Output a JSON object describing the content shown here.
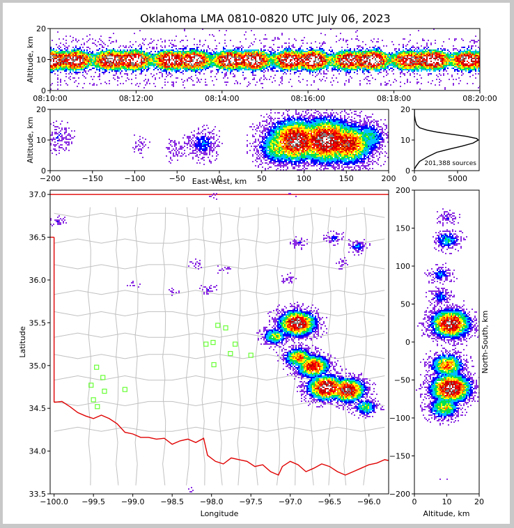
{
  "title": "Oklahoma LMA 0810-0820 UTC July 06, 2023",
  "colors": {
    "background_frame": "#c8c8c8",
    "state_border": "#e00000",
    "county_lines": "#c0c0c0",
    "station_marker": "#66ff33",
    "density_scale": [
      "#ffffff",
      "#8a2be2",
      "#0000ff",
      "#00c0ff",
      "#00e050",
      "#ffff00",
      "#ff8000",
      "#ff0000",
      "#c00000",
      "#808080",
      "#ffffff"
    ]
  },
  "chart_data": [
    {
      "type": "heatmap",
      "panel": "time-altitude",
      "ylabel": "Altitude, km",
      "xlim": [
        "08:10:00",
        "08:20:00"
      ],
      "ylim": [
        0,
        20
      ],
      "x_ticks": [
        "08:10:00",
        "08:12:00",
        "08:14:00",
        "08:16:00",
        "08:18:00",
        "08:20:00"
      ],
      "y_ticks": [
        "0",
        "10",
        "20"
      ],
      "core_altitude_km": [
        5,
        14
      ],
      "peak_altitude_km": 10
    },
    {
      "type": "heatmap",
      "panel": "east-west-altitude",
      "xlabel": "East-West, km",
      "ylabel": "Altitude, km",
      "xlim": [
        -200,
        200
      ],
      "ylim": [
        0,
        20
      ],
      "x_ticks": [
        "−200",
        "−150",
        "−100",
        "−50",
        "0",
        "50",
        "100",
        "150",
        "200"
      ],
      "y_ticks": [
        "0",
        "10",
        "20"
      ],
      "cells": [
        {
          "x": 90,
          "z": 10,
          "intensity": 0.95
        },
        {
          "x": 125,
          "z": 10,
          "intensity": 1.0
        },
        {
          "x": 150,
          "z": 9,
          "intensity": 0.85
        },
        {
          "x": 70,
          "z": 8,
          "intensity": 0.6
        },
        {
          "x": 175,
          "z": 11,
          "intensity": 0.45
        },
        {
          "x": -20,
          "z": 9,
          "intensity": 0.3
        },
        {
          "x": -50,
          "z": 7,
          "intensity": 0.15
        },
        {
          "x": -95,
          "z": 8,
          "intensity": 0.1
        },
        {
          "x": -190,
          "z": 11,
          "intensity": 0.2
        }
      ]
    },
    {
      "type": "line",
      "panel": "altitude-histogram",
      "annotation": "201,388 sources",
      "xlim": [
        0,
        7500
      ],
      "ylim": [
        0,
        20
      ],
      "x_ticks": [
        "0",
        "5000"
      ],
      "y_ticks": [
        "0",
        "10",
        "20"
      ],
      "series": [
        {
          "x": [
            0,
            200,
            600,
            1500,
            2600,
            4000,
            5500,
            6800,
            7400,
            7200,
            6000,
            4500,
            2800,
            1500,
            600,
            250,
            100,
            20,
            0
          ],
          "y": [
            0.5,
            1.5,
            3,
            4.5,
            6,
            7,
            8,
            9,
            10,
            10.5,
            11.2,
            11.8,
            12.5,
            13.2,
            14,
            15,
            16.5,
            18,
            20
          ]
        }
      ]
    },
    {
      "type": "scatter",
      "panel": "plan-view",
      "xlabel": "Longitude",
      "ylabel": "Latitude",
      "xlim": [
        -100.05,
        -95.75
      ],
      "ylim": [
        33.5,
        37.05
      ],
      "x_ticks": [
        "−100.0",
        "−99.5",
        "−99.0",
        "−98.5",
        "−98.0",
        "−97.5",
        "−97.0",
        "−96.5",
        "−96.0"
      ],
      "y_ticks": [
        "33.5",
        "34.0",
        "34.5",
        "35.0",
        "35.5",
        "36.0",
        "36.5",
        "37.0"
      ],
      "storm_cells": [
        {
          "lon": -96.92,
          "lat": 35.5,
          "intensity": 1.0
        },
        {
          "lon": -96.55,
          "lat": 34.75,
          "intensity": 1.0
        },
        {
          "lon": -96.28,
          "lat": 34.72,
          "intensity": 0.95
        },
        {
          "lon": -96.72,
          "lat": 35.0,
          "intensity": 0.85
        },
        {
          "lon": -96.9,
          "lat": 35.1,
          "intensity": 0.7
        },
        {
          "lon": -97.2,
          "lat": 35.35,
          "intensity": 0.55
        },
        {
          "lon": -96.05,
          "lat": 34.52,
          "intensity": 0.5
        },
        {
          "lon": -96.15,
          "lat": 36.4,
          "intensity": 0.3
        },
        {
          "lon": -96.45,
          "lat": 36.5,
          "intensity": 0.25
        },
        {
          "lon": -96.9,
          "lat": 36.45,
          "intensity": 0.2
        },
        {
          "lon": -96.35,
          "lat": 36.2,
          "intensity": 0.15
        },
        {
          "lon": -97.03,
          "lat": 36.03,
          "intensity": 0.15
        },
        {
          "lon": -98.05,
          "lat": 35.9,
          "intensity": 0.2
        },
        {
          "lon": -98.2,
          "lat": 36.2,
          "intensity": 0.15
        },
        {
          "lon": -97.85,
          "lat": 36.13,
          "intensity": 0.12
        },
        {
          "lon": -98.5,
          "lat": 35.88,
          "intensity": 0.1
        },
        {
          "lon": -99.0,
          "lat": 35.95,
          "intensity": 0.1
        },
        {
          "lon": -98.0,
          "lat": 37.0,
          "intensity": 0.12
        },
        {
          "lon": -97.0,
          "lat": 37.0,
          "intensity": 0.08
        },
        {
          "lon": -99.95,
          "lat": 36.7,
          "intensity": 0.2
        },
        {
          "lon": -98.25,
          "lat": 33.55,
          "intensity": 0.05
        }
      ],
      "stations": [
        {
          "lon": -97.92,
          "lat": 35.47
        },
        {
          "lon": -97.82,
          "lat": 35.44
        },
        {
          "lon": -98.07,
          "lat": 35.25
        },
        {
          "lon": -97.98,
          "lat": 35.27
        },
        {
          "lon": -97.7,
          "lat": 35.25
        },
        {
          "lon": -97.76,
          "lat": 35.14
        },
        {
          "lon": -97.97,
          "lat": 35.01
        },
        {
          "lon": -97.5,
          "lat": 35.12
        },
        {
          "lon": -99.46,
          "lat": 34.98
        },
        {
          "lon": -99.38,
          "lat": 34.86
        },
        {
          "lon": -99.53,
          "lat": 34.77
        },
        {
          "lon": -99.36,
          "lat": 34.7
        },
        {
          "lon": -99.1,
          "lat": 34.72
        },
        {
          "lon": -99.5,
          "lat": 34.6
        },
        {
          "lon": -99.45,
          "lat": 34.52
        }
      ]
    },
    {
      "type": "heatmap",
      "panel": "altitude-north-south",
      "xlabel": "Altitude, km",
      "ylabel": "North-South, km",
      "xlim": [
        0,
        20
      ],
      "ylim": [
        -200,
        200
      ],
      "x_ticks": [
        "0",
        "10",
        "20"
      ],
      "y_ticks": [
        "−200",
        "−150",
        "−100",
        "−50",
        "0",
        "50",
        "100",
        "150",
        "200"
      ],
      "cells": [
        {
          "z": 11,
          "y": 25,
          "intensity": 0.95
        },
        {
          "z": 10,
          "y": -30,
          "intensity": 0.7
        },
        {
          "z": 11,
          "y": -60,
          "intensity": 1.0
        },
        {
          "z": 9,
          "y": -85,
          "intensity": 0.6
        },
        {
          "z": 10,
          "y": 135,
          "intensity": 0.4
        },
        {
          "z": 8,
          "y": 90,
          "intensity": 0.3
        },
        {
          "z": 8,
          "y": 60,
          "intensity": 0.3
        },
        {
          "z": 10,
          "y": 165,
          "intensity": 0.2
        },
        {
          "z": 9,
          "y": -180,
          "intensity": 0.05
        }
      ]
    }
  ]
}
